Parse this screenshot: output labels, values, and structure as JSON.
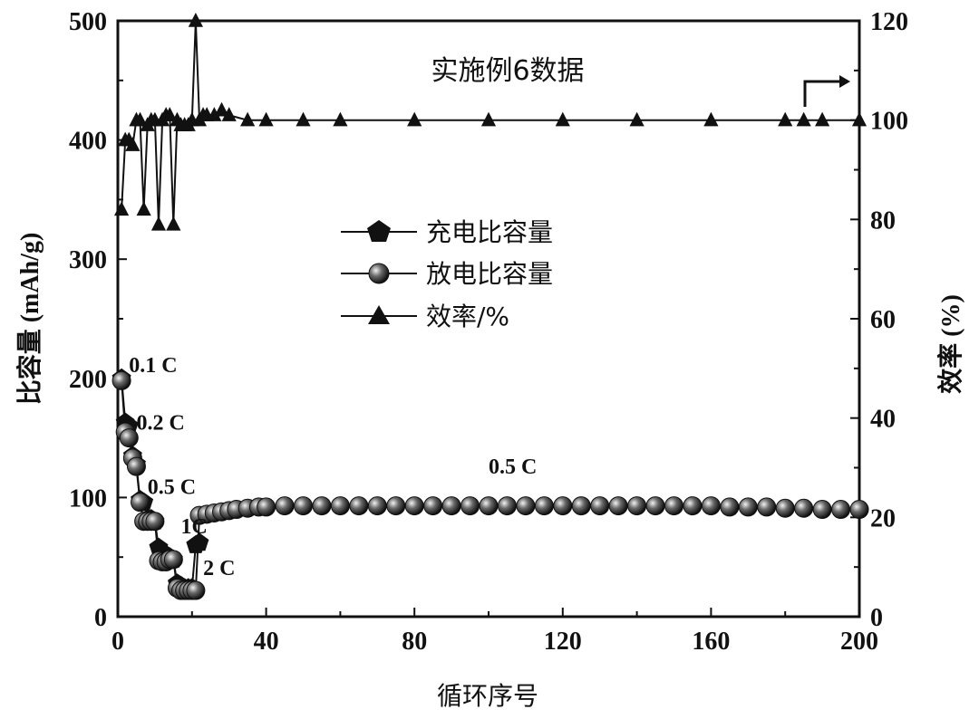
{
  "chart_data": {
    "type": "line",
    "title": "实施例6数据",
    "xlabel": "循环序号",
    "ylabel_left": "比容量 (mAh/g)",
    "ylabel_right": "效率 (%)",
    "xlim": [
      0,
      200
    ],
    "ylim_left": [
      0,
      500
    ],
    "ylim_right": [
      0,
      120
    ],
    "x_ticks": [
      "0",
      "40",
      "80",
      "120",
      "160",
      "200"
    ],
    "y_left_ticks": [
      "0",
      "100",
      "200",
      "300",
      "400",
      "500"
    ],
    "y_right_ticks": [
      "0",
      "20",
      "40",
      "60",
      "80",
      "100",
      "120"
    ],
    "legend_position": "center",
    "legend": [
      "充电比容量",
      "放电比容量",
      "效率/%"
    ],
    "annotations": [
      {
        "text": "0.1 C",
        "x": 3,
        "y": 205
      },
      {
        "text": "0.2 C",
        "x": 5,
        "y": 157
      },
      {
        "text": "0.5 C",
        "x": 8,
        "y": 103
      },
      {
        "text": "1C",
        "x": 17,
        "y": 70
      },
      {
        "text": "2 C",
        "x": 23,
        "y": 35
      },
      {
        "text": "0.5 C",
        "x": 100,
        "y": 120
      }
    ],
    "arrow_text": "",
    "series": [
      {
        "name": "充电比容量",
        "axis": "left",
        "marker": "pentagon",
        "x": [
          1,
          2,
          3,
          4,
          5,
          6,
          7,
          8,
          9,
          10,
          11,
          12,
          13,
          14,
          15,
          16,
          17,
          18,
          19,
          20,
          21,
          22
        ],
        "y": [
          200,
          163,
          160,
          135,
          128,
          98,
          96,
          82,
          82,
          80,
          58,
          52,
          52,
          50,
          48,
          28,
          26,
          24,
          24,
          24,
          60,
          62
        ]
      },
      {
        "name": "放电比容量",
        "axis": "left",
        "marker": "circle",
        "x": [
          1,
          2,
          3,
          4,
          5,
          6,
          7,
          8,
          9,
          10,
          11,
          12,
          13,
          14,
          15,
          16,
          17,
          18,
          19,
          20,
          21,
          22,
          24,
          26,
          28,
          30,
          32,
          35,
          38,
          40,
          45,
          50,
          55,
          60,
          65,
          70,
          75,
          80,
          85,
          90,
          95,
          100,
          105,
          110,
          115,
          120,
          125,
          130,
          135,
          140,
          145,
          150,
          155,
          160,
          165,
          170,
          175,
          180,
          185,
          190,
          195,
          200
        ],
        "y": [
          198,
          155,
          150,
          133,
          126,
          96,
          80,
          80,
          80,
          80,
          47,
          46,
          46,
          48,
          48,
          24,
          22,
          22,
          22,
          22,
          22,
          85,
          86,
          87,
          88,
          89,
          90,
          91,
          92,
          92,
          93,
          93,
          93,
          93,
          93,
          93,
          93,
          93,
          93,
          93,
          93,
          93,
          93,
          93,
          93,
          93,
          93,
          93,
          93,
          93,
          93,
          93,
          93,
          93,
          92,
          92,
          92,
          91,
          91,
          90,
          90,
          90
        ]
      },
      {
        "name": "效率/%",
        "axis": "right",
        "marker": "triangle",
        "x": [
          1,
          2,
          3,
          4,
          5,
          6,
          7,
          8,
          9,
          10,
          11,
          12,
          13,
          14,
          15,
          16,
          17,
          18,
          19,
          20,
          21,
          22,
          23,
          24,
          26,
          28,
          30,
          35,
          40,
          50,
          60,
          80,
          100,
          120,
          140,
          160,
          180,
          185,
          190,
          200
        ],
        "y": [
          82,
          96,
          96,
          95,
          100,
          100,
          82,
          99,
          100,
          100,
          79,
          100,
          101,
          101,
          79,
          100,
          99,
          99,
          99,
          100,
          120,
          100,
          101,
          101,
          101,
          102,
          101,
          100,
          100,
          100,
          100,
          100,
          100,
          100,
          100,
          100,
          100,
          100,
          100,
          100
        ]
      }
    ]
  }
}
